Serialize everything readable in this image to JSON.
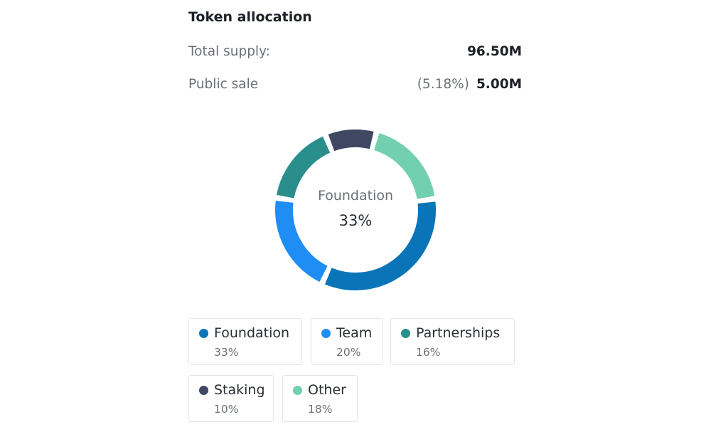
{
  "title": "Token allocation",
  "summary": {
    "total_supply_label": "Total supply:",
    "total_supply_value": "96.50M",
    "public_sale_label": "Public sale",
    "public_sale_percent": "(5.18%)",
    "public_sale_value": "5.00M"
  },
  "center": {
    "label": "Foundation",
    "value": "33%"
  },
  "legend": [
    {
      "name": "Foundation",
      "share": "33%"
    },
    {
      "name": "Team",
      "share": "20%"
    },
    {
      "name": "Partnerships",
      "share": "16%"
    },
    {
      "name": "Staking",
      "share": "10%"
    },
    {
      "name": "Other",
      "share": "18%"
    }
  ],
  "chart_data": {
    "type": "pie",
    "style": "donut",
    "categories": [
      "Foundation",
      "Team",
      "Partnerships",
      "Staking",
      "Other"
    ],
    "values": [
      33,
      20,
      16,
      10,
      18
    ],
    "colors": [
      "#0a74b8",
      "#1e8ef5",
      "#2a8f8c",
      "#404763",
      "#72cfb0"
    ],
    "legend_placement": "bottom"
  }
}
